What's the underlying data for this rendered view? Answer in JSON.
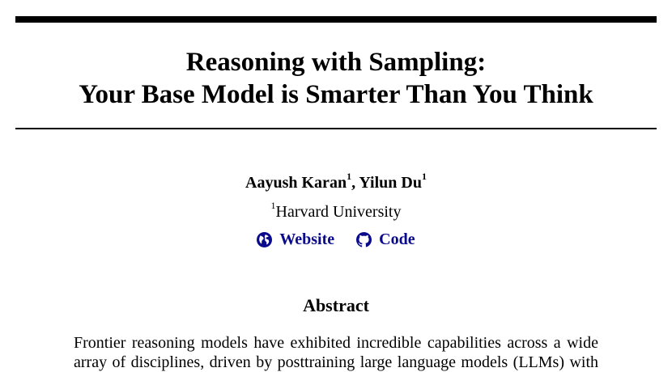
{
  "paper": {
    "title_line1": "Reasoning with Sampling:",
    "title_line2": "Your Base Model is Smarter Than You Think",
    "authors": [
      {
        "name": "Aayush Karan",
        "affiliation_mark": "1"
      },
      {
        "name": "Yilun Du",
        "affiliation_mark": "1"
      }
    ],
    "author_separator": ", ",
    "affiliation": {
      "mark": "1",
      "name": "Harvard University"
    },
    "links": [
      {
        "label": "Website",
        "icon": "globe-icon"
      },
      {
        "label": "Code",
        "icon": "github-icon"
      }
    ],
    "link_color": "#0a0a8c",
    "abstract_heading": "Abstract",
    "abstract_line1": "Frontier reasoning models have exhibited incredible capabilities across a wide",
    "abstract_line2": "array of disciplines, driven by posttraining large language models (LLMs) with"
  }
}
